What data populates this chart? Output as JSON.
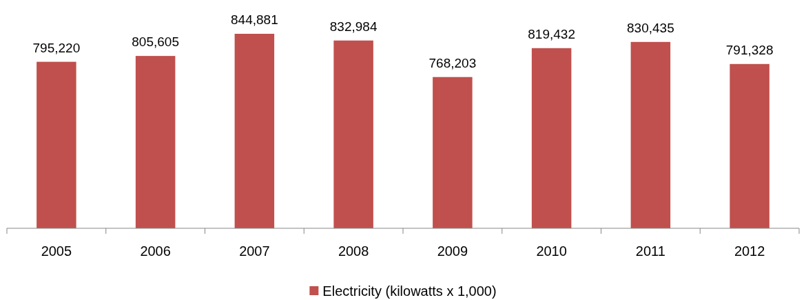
{
  "chart_data": {
    "type": "bar",
    "categories": [
      "2005",
      "2006",
      "2007",
      "2008",
      "2009",
      "2010",
      "2011",
      "2012"
    ],
    "series": [
      {
        "name": "Electricity (kilowatts x 1,000)",
        "color": "#c0504d",
        "values": [
          795220,
          805605,
          844881,
          832984,
          768203,
          819432,
          830435,
          791328
        ],
        "value_labels": [
          "795,220",
          "805,605",
          "844,881",
          "832,984",
          "768,203",
          "819,432",
          "830,435",
          "791,328"
        ]
      }
    ],
    "ylim": [
      500000,
      844881
    ],
    "tick_labels": "x",
    "legend": "bottom"
  }
}
